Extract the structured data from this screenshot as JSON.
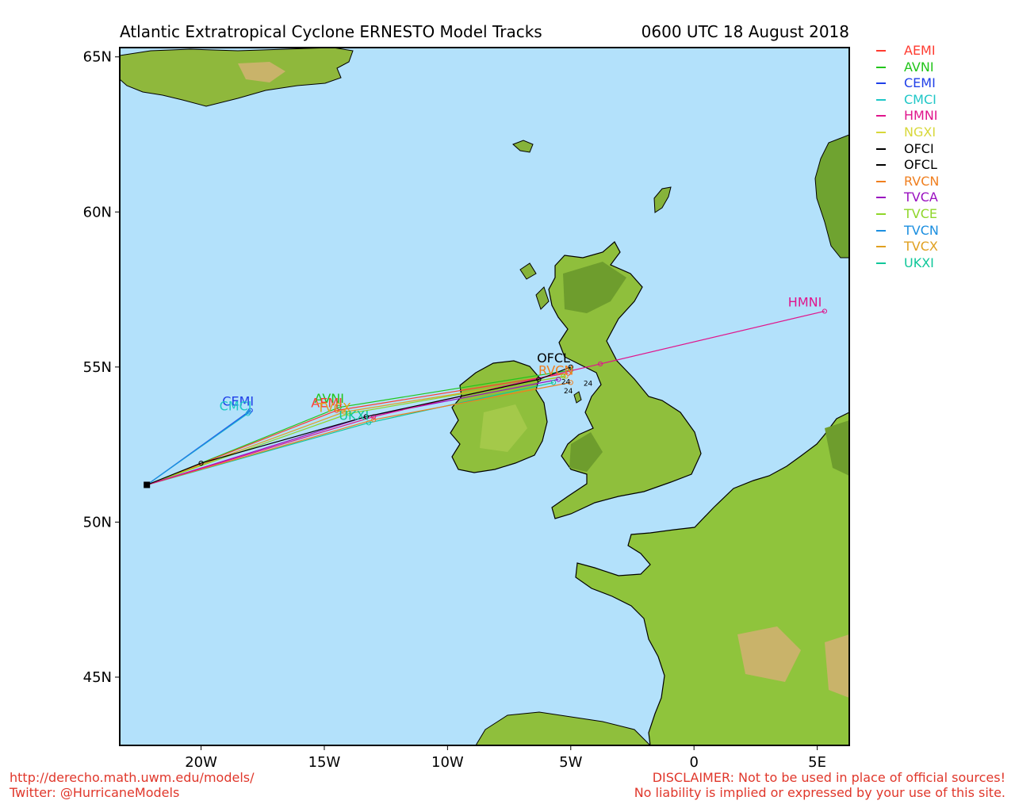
{
  "title": {
    "left": "Atlantic Extratropical Cyclone ERNESTO Model Tracks",
    "right": "0600 UTC 18 August 2018"
  },
  "axes": {
    "lat_labels": [
      "65N",
      "60N",
      "55N",
      "50N",
      "45N"
    ],
    "lon_labels": [
      "20W",
      "15W",
      "10W",
      "5W",
      "0",
      "5E"
    ]
  },
  "legend": [
    {
      "label": "AEMI",
      "color": "#ff3b30"
    },
    {
      "label": "AVNI",
      "color": "#22c51a"
    },
    {
      "label": "CEMI",
      "color": "#2040e8"
    },
    {
      "label": "CMCI",
      "color": "#1fc7c7"
    },
    {
      "label": "HMNI",
      "color": "#e0158c"
    },
    {
      "label": "NGXI",
      "color": "#d8d83a"
    },
    {
      "label": "OFCI",
      "color": "#000000"
    },
    {
      "label": "OFCL",
      "color": "#000000"
    },
    {
      "label": "RVCN",
      "color": "#f07f1f"
    },
    {
      "label": "TVCA",
      "color": "#9a10c0"
    },
    {
      "label": "TVCE",
      "color": "#8fd62a"
    },
    {
      "label": "TVCN",
      "color": "#1c8fe0"
    },
    {
      "label": "TVCX",
      "color": "#e0a020"
    },
    {
      "label": "UKXI",
      "color": "#10c79a"
    }
  ],
  "map_data": {
    "projection": "plate-carree",
    "lon_range": [
      -23.3,
      6.3
    ],
    "lat_range": [
      42.8,
      65.3
    ],
    "storm_start": {
      "lat": 51.2,
      "lon": -22.2
    },
    "tracks": [
      {
        "model": "CEMI",
        "color": "#2040e8",
        "points": [
          [
            51.2,
            -22.2
          ],
          [
            53.6,
            -18.0
          ]
        ]
      },
      {
        "model": "CMCI",
        "color": "#1fc7c7",
        "points": [
          [
            51.2,
            -22.2
          ],
          [
            53.5,
            -18.1
          ]
        ]
      },
      {
        "model": "TVCN",
        "color": "#1c8fe0",
        "points": [
          [
            51.2,
            -22.2
          ],
          [
            53.55,
            -18.05
          ]
        ]
      },
      {
        "model": "AVNI",
        "color": "#22c51a",
        "points": [
          [
            51.2,
            -22.2
          ],
          [
            53.7,
            -14.4
          ],
          [
            54.9,
            -5.0
          ]
        ]
      },
      {
        "model": "AEMI",
        "color": "#ff3b30",
        "points": [
          [
            51.2,
            -22.2
          ],
          [
            53.6,
            -14.5
          ],
          [
            54.8,
            -5.1
          ]
        ]
      },
      {
        "model": "TVCX",
        "color": "#e0a020",
        "points": [
          [
            51.2,
            -22.2
          ],
          [
            53.55,
            -14.2
          ],
          [
            54.7,
            -5.2
          ]
        ]
      },
      {
        "model": "TVCE",
        "color": "#8fd62a",
        "points": [
          [
            51.2,
            -22.2
          ],
          [
            53.5,
            -14.0
          ],
          [
            54.7,
            -5.3
          ]
        ]
      },
      {
        "model": "TVCA",
        "color": "#9a10c0",
        "points": [
          [
            51.2,
            -22.2
          ],
          [
            53.4,
            -13.3
          ],
          [
            54.6,
            -5.5
          ]
        ]
      },
      {
        "model": "UKXI",
        "color": "#10c79a",
        "points": [
          [
            51.2,
            -22.2
          ],
          [
            53.2,
            -13.2
          ],
          [
            54.5,
            -5.7
          ]
        ]
      },
      {
        "model": "RVCN",
        "color": "#f07f1f",
        "points": [
          [
            51.2,
            -22.2
          ],
          [
            53.3,
            -13.0
          ],
          [
            54.5,
            -5.0
          ]
        ]
      },
      {
        "model": "HMNI",
        "color": "#e0158c",
        "points": [
          [
            51.2,
            -22.2
          ],
          [
            53.4,
            -13.0
          ],
          [
            55.1,
            -3.8
          ],
          [
            56.8,
            5.3
          ]
        ]
      },
      {
        "model": "OFCL",
        "color": "#000000",
        "points": [
          [
            51.2,
            -22.2
          ],
          [
            51.9,
            -20.0
          ],
          [
            53.4,
            -13.3
          ],
          [
            54.6,
            -6.3
          ],
          [
            55.0,
            -5.0
          ]
        ]
      }
    ],
    "labels": [
      {
        "text": "CEMI",
        "lat": 53.75,
        "lon": -18.5,
        "color": "#2040e8"
      },
      {
        "text": "CMCI",
        "lat": 53.6,
        "lon": -18.6,
        "color": "#1fc7c7"
      },
      {
        "text": "AVNI",
        "lat": 53.85,
        "lon": -14.8,
        "color": "#22c51a"
      },
      {
        "text": "AEMI",
        "lat": 53.7,
        "lon": -14.9,
        "color": "#ff3b30"
      },
      {
        "text": "TVCX",
        "lat": 53.55,
        "lon": -14.6,
        "color": "#e0a020"
      },
      {
        "text": "UKXI",
        "lat": 53.3,
        "lon": -13.8,
        "color": "#10c79a"
      },
      {
        "text": "OFCL",
        "lat": 55.15,
        "lon": -5.7,
        "color": "#000000"
      },
      {
        "text": "RVCN",
        "lat": 54.75,
        "lon": -5.6,
        "color": "#f07f1f"
      },
      {
        "text": "HMNI",
        "lat": 56.95,
        "lon": 4.5,
        "color": "#e0158c"
      }
    ],
    "hour_labels": [
      {
        "text": "24",
        "lat": 54.45,
        "lon": -5.2
      },
      {
        "text": "24",
        "lat": 54.4,
        "lon": -4.3
      },
      {
        "text": "24",
        "lat": 54.15,
        "lon": -5.1
      }
    ]
  },
  "footer": {
    "url": "http://derecho.math.uwm.edu/models/",
    "twitter": "Twitter: @HurricaneModels",
    "disclaimer1": "DISCLAIMER: Not to be used in place of official sources!",
    "disclaimer2": "No liability is implied or expressed by your use of this site."
  }
}
